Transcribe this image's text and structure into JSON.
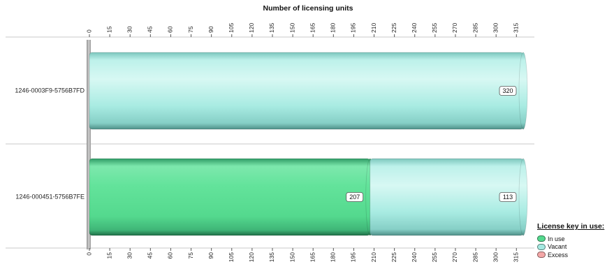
{
  "chart_data": {
    "type": "bar",
    "orientation": "horizontal",
    "stacked": true,
    "title": "Number of licensing units",
    "categories": [
      "1246-0003F9-5756B7FD",
      "1246-000451-5756B7FE"
    ],
    "series": [
      {
        "name": "In use",
        "values": [
          0,
          207
        ],
        "color": "#54d98e"
      },
      {
        "name": "Vacant",
        "values": [
          320,
          113
        ],
        "color": "#a5e9e1"
      },
      {
        "name": "Excess",
        "values": [
          0,
          0
        ],
        "color": "#f4a7a7"
      }
    ],
    "xlim": [
      0,
      320
    ],
    "ticks": [
      0,
      15,
      30,
      45,
      60,
      75,
      90,
      105,
      120,
      135,
      150,
      165,
      180,
      195,
      210,
      225,
      240,
      255,
      270,
      285,
      300,
      315
    ],
    "axis_positions": "top and bottom",
    "grid": false,
    "legend": {
      "title": "License key in use:",
      "position": "bottom-right"
    }
  }
}
